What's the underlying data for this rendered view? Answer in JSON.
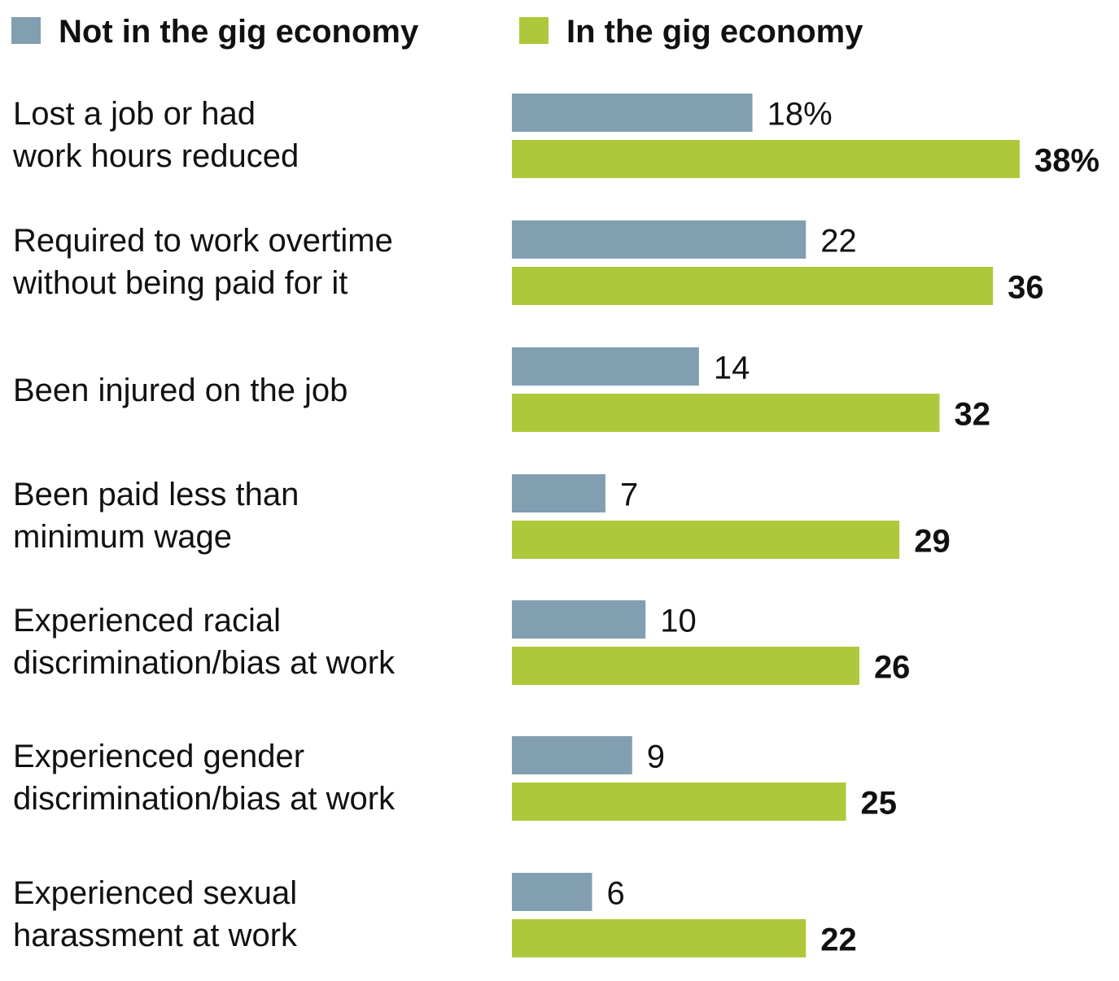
{
  "chart_data": {
    "type": "bar",
    "orientation": "horizontal",
    "title": "",
    "xlabel": "",
    "ylabel": "",
    "grid": false,
    "legend_position": "top",
    "unit": "%",
    "xlim": [
      0,
      38
    ],
    "categories": [
      [
        "Lost a job or had",
        "work hours reduced"
      ],
      [
        "Required to work overtime",
        "without being paid for it"
      ],
      [
        "Been injured on the job"
      ],
      [
        "Been paid less than",
        "minimum wage"
      ],
      [
        "Experienced racial",
        "discrimination/bias at work"
      ],
      [
        "Experienced gender",
        "discrimination/bias at work"
      ],
      [
        "Experienced sexual",
        "harassment at work"
      ]
    ],
    "series": [
      {
        "name": "Not in the gig economy",
        "color": "#829fb2",
        "values": [
          18,
          22,
          14,
          7,
          10,
          9,
          6
        ],
        "labels": [
          "18%",
          "22",
          "14",
          "7",
          "10",
          "9",
          "6"
        ]
      },
      {
        "name": "In the gig economy",
        "color": "#adc93b",
        "values": [
          38,
          36,
          32,
          29,
          26,
          25,
          22
        ],
        "labels": [
          "38%",
          "36",
          "32",
          "29",
          "26",
          "25",
          "22"
        ]
      }
    ]
  }
}
